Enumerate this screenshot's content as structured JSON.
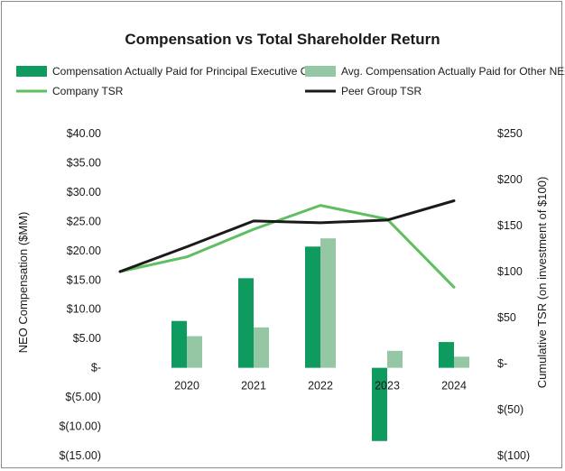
{
  "chart_data": {
    "type": "bar+line",
    "title": "Compensation vs Total Shareholder Return",
    "categories": [
      "2020",
      "2021",
      "2022",
      "2023",
      "2024"
    ],
    "left_axis": {
      "label": "NEO Compensation ($MM)",
      "range": [
        -15,
        40
      ],
      "ticks": [
        40,
        35,
        30,
        25,
        20,
        15,
        10,
        5,
        0,
        -5,
        -10,
        -15
      ],
      "tick_labels": [
        "$40.00",
        "$35.00",
        "$30.00",
        "$25.00",
        "$20.00",
        "$15.00",
        "$10.00",
        "$5.00",
        "$-",
        "$(5.00)",
        "$(10.00)",
        "$(15.00)"
      ]
    },
    "right_axis": {
      "label": "Cumulative TSR (on investment of $100)",
      "range": [
        -100,
        250
      ],
      "ticks": [
        250,
        200,
        150,
        100,
        50,
        0,
        -50,
        -100
      ],
      "tick_labels": [
        "$250",
        "$200",
        "$150",
        "$100",
        "$50",
        "$-",
        "$(50)",
        "$(100)"
      ]
    },
    "bar_series": [
      {
        "name": "Compensation Actually Paid for Principal Executive Officer",
        "color": "#0f9a5f",
        "values": [
          8.0,
          15.3,
          20.7,
          -12.5,
          4.4
        ]
      },
      {
        "name": "Avg. Compensation Actually Paid for Other NEOs",
        "color": "#95c7a5",
        "values": [
          5.4,
          6.9,
          22.1,
          2.9,
          1.9
        ]
      }
    ],
    "line_series": [
      {
        "name": "Company TSR",
        "color": "#5fbf60",
        "x": [
          "2019",
          "2020",
          "2021",
          "2022",
          "2023",
          "2024"
        ],
        "values": [
          100,
          116,
          146,
          172,
          157,
          83
        ]
      },
      {
        "name": "Peer Group TSR",
        "color": "#1a1a1a",
        "x": [
          "2019",
          "2020",
          "2021",
          "2022",
          "2023",
          "2024"
        ],
        "values": [
          100,
          127,
          155,
          153,
          156,
          177
        ]
      }
    ],
    "legend_position": "top"
  }
}
